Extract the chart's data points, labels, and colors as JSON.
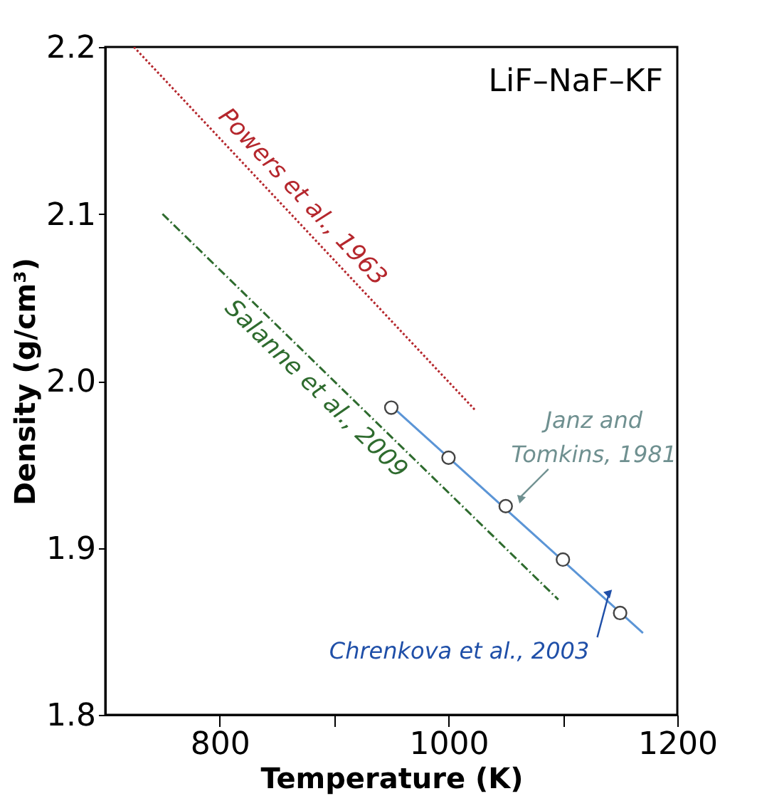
{
  "chart_data": {
    "type": "line",
    "title": "LiF–NaF–KF",
    "xlabel": "Temperature (K)",
    "ylabel": "Density (g/cm³)",
    "xlim": [
      700,
      1200
    ],
    "xticks": [
      800,
      {
        "value": 900,
        "label": null
      },
      1000,
      {
        "value": 1100,
        "label": null
      },
      1200
    ],
    "ylim": [
      1.8,
      2.2
    ],
    "yticks": [
      1.8,
      1.9,
      {
        "value": 2.0,
        "label": "2.0"
      },
      2.1,
      2.2
    ],
    "grid": false,
    "legend": false,
    "series": [
      {
        "name": "Powers et al., 1963",
        "color": "#b5272d",
        "line_style": "dotted",
        "x": [
          725,
          1024
        ],
        "values": [
          2.2,
          1.982
        ]
      },
      {
        "name": "Salanne et al., 2009",
        "color": "#2e6b2e",
        "line_style": "dashed",
        "x": [
          750,
          1096
        ],
        "values": [
          2.1,
          1.869
        ]
      },
      {
        "color": "#5b95d6",
        "line_style": "solid",
        "x": [
          950,
          1170
        ],
        "values": [
          1.985,
          1.849
        ]
      },
      {
        "type": "scatter",
        "color": "#444444",
        "marker": "circle",
        "x": [
          950,
          1000,
          1050,
          1100,
          1150
        ],
        "values": [
          1.984,
          1.954,
          1.925,
          1.893,
          1.861
        ]
      }
    ],
    "annotations": [
      {
        "text": "Janz and\nTomkins, 1981",
        "x": 1050,
        "y": 1.925
      },
      {
        "text": "Chrenkova et al., 2003",
        "x": 1140,
        "y": 1.872
      }
    ]
  }
}
